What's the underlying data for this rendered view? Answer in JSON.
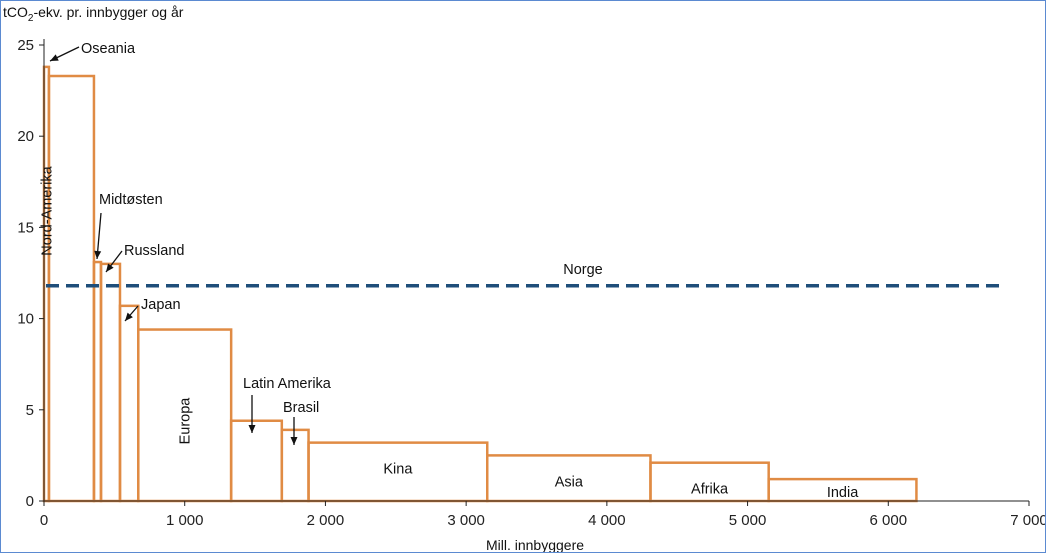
{
  "chart_data": {
    "type": "bar",
    "variant": "variable-width",
    "ylabel_parts": [
      "tCO",
      "2",
      "-ekv. pr. innbygger og år"
    ],
    "xlabel": "Mill. innbyggere",
    "xlim": [
      0,
      7000
    ],
    "ylim": [
      0,
      25
    ],
    "xticks": [
      0,
      1000,
      2000,
      3000,
      4000,
      5000,
      6000,
      7000
    ],
    "xtick_labels": [
      "0",
      "1 000",
      "2 000",
      "3 000",
      "4 000",
      "5 000",
      "6 000",
      "7 000"
    ],
    "yticks": [
      0,
      5,
      10,
      15,
      20,
      25
    ],
    "ytick_labels": [
      "0",
      "5",
      "10",
      "15",
      "20",
      "25"
    ],
    "grid": false,
    "colors": {
      "bar": "#e08b44",
      "reference": "#1f4e7a",
      "axis": "#222222",
      "frame": "#5b8ad1"
    },
    "regions": [
      {
        "name": "Oseania",
        "x0": 0,
        "x1": 35,
        "y": 23.8
      },
      {
        "name": "Nord-Amerika",
        "x0": 35,
        "x1": 355,
        "y": 23.3
      },
      {
        "name": "Midtøsten",
        "x0": 355,
        "x1": 405,
        "y": 13.1
      },
      {
        "name": "Russland",
        "x0": 405,
        "x1": 540,
        "y": 13.0
      },
      {
        "name": "Japan",
        "x0": 540,
        "x1": 670,
        "y": 10.7
      },
      {
        "name": "Europa",
        "x0": 670,
        "x1": 1330,
        "y": 9.4
      },
      {
        "name": "Latin Amerika",
        "x0": 1330,
        "x1": 1690,
        "y": 4.4
      },
      {
        "name": "Brasil",
        "x0": 1690,
        "x1": 1880,
        "y": 3.9
      },
      {
        "name": "Kina",
        "x0": 1880,
        "x1": 3150,
        "y": 3.2
      },
      {
        "name": "Asia",
        "x0": 3150,
        "x1": 4310,
        "y": 2.5
      },
      {
        "name": "Afrika",
        "x0": 4310,
        "x1": 5150,
        "y": 2.1
      },
      {
        "name": "India",
        "x0": 5150,
        "x1": 6200,
        "y": 1.2
      }
    ],
    "reference_line": {
      "name": "Norge",
      "y": 11.8,
      "x0": 0,
      "x1": 6800,
      "style": "dashed"
    }
  }
}
